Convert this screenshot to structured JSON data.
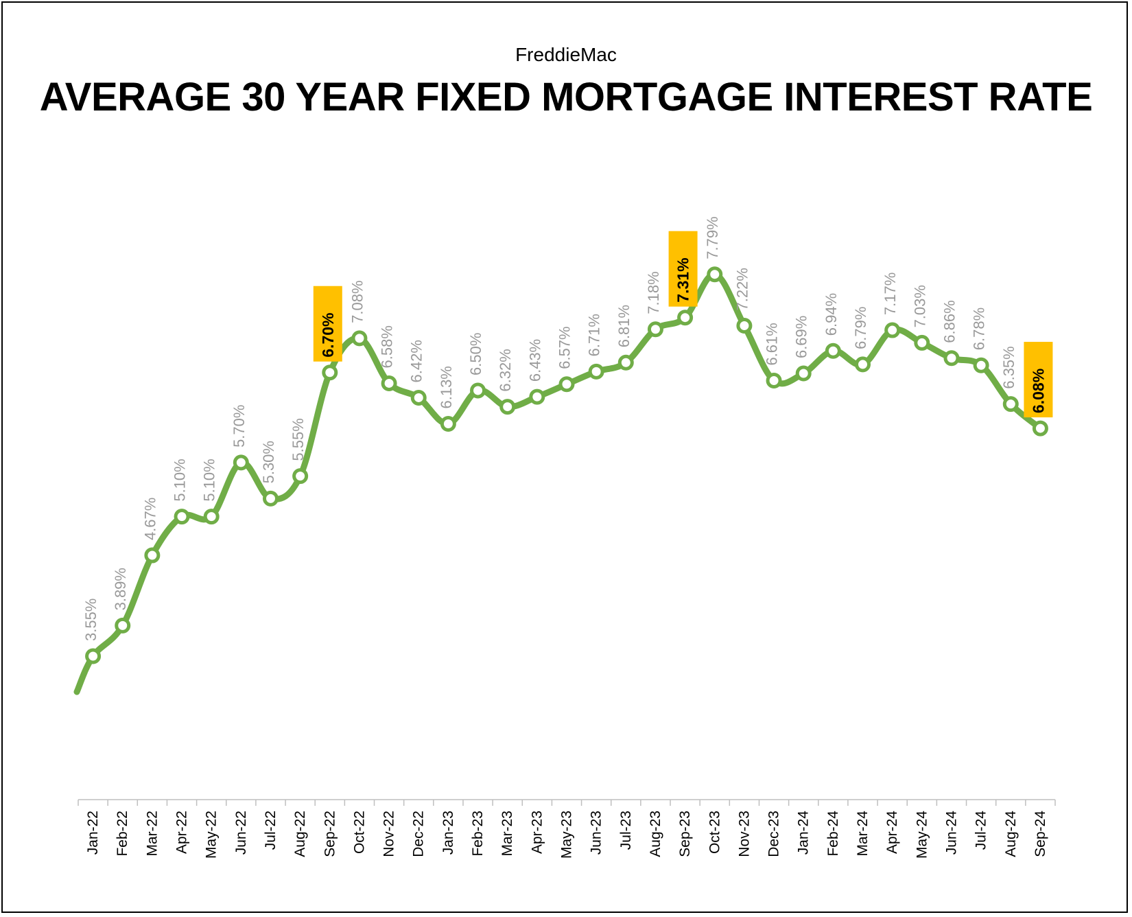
{
  "chart_data": {
    "type": "line",
    "subtitle": "FreddieMac",
    "title": "AVERAGE 30 YEAR FIXED MORTGAGE INTEREST RATE",
    "xlabel": "",
    "ylabel": "",
    "categories": [
      "Jan-22",
      "Feb-22",
      "Mar-22",
      "Apr-22",
      "May-22",
      "Jun-22",
      "Jul-22",
      "Aug-22",
      "Sep-22",
      "Oct-22",
      "Nov-22",
      "Dec-22",
      "Jan-23",
      "Feb-23",
      "Mar-23",
      "Apr-23",
      "May-23",
      "Jun-23",
      "Jul-23",
      "Aug-23",
      "Sep-23",
      "Oct-23",
      "Nov-23",
      "Dec-23",
      "Jan-24",
      "Feb-24",
      "Mar-24",
      "Apr-24",
      "May-24",
      "Jun-24",
      "Jul-24",
      "Aug-24",
      "Sep-24"
    ],
    "values": [
      3.55,
      3.89,
      4.67,
      5.1,
      5.1,
      5.7,
      5.3,
      5.55,
      6.7,
      7.08,
      6.58,
      6.42,
      6.13,
      6.5,
      6.32,
      6.43,
      6.57,
      6.71,
      6.81,
      7.18,
      7.31,
      7.79,
      7.22,
      6.61,
      6.69,
      6.94,
      6.79,
      7.17,
      7.03,
      6.86,
      6.78,
      6.35,
      6.08
    ],
    "data_labels": [
      "3.55%",
      "3.89%",
      "4.67%",
      "5.10%",
      "5.10%",
      "5.70%",
      "5.30%",
      "5.55%",
      "6.70%",
      "7.08%",
      "6.58%",
      "6.42%",
      "6.13%",
      "6.50%",
      "6.32%",
      "6.43%",
      "6.57%",
      "6.71%",
      "6.81%",
      "7.18%",
      "7.31%",
      "7.79%",
      "7.22%",
      "6.61%",
      "6.69%",
      "6.94%",
      "6.79%",
      "7.17%",
      "7.03%",
      "6.86%",
      "6.78%",
      "6.35%",
      "6.08%"
    ],
    "highlighted": [
      "Sep-22",
      "Sep-23",
      "Sep-24"
    ],
    "grid": false,
    "legend": "none",
    "colors": {
      "line": "#70ad47",
      "label": "#999999",
      "highlight_fill": "#ffc000",
      "highlight_text": "#000000",
      "axis": "#bfbfbf"
    }
  }
}
